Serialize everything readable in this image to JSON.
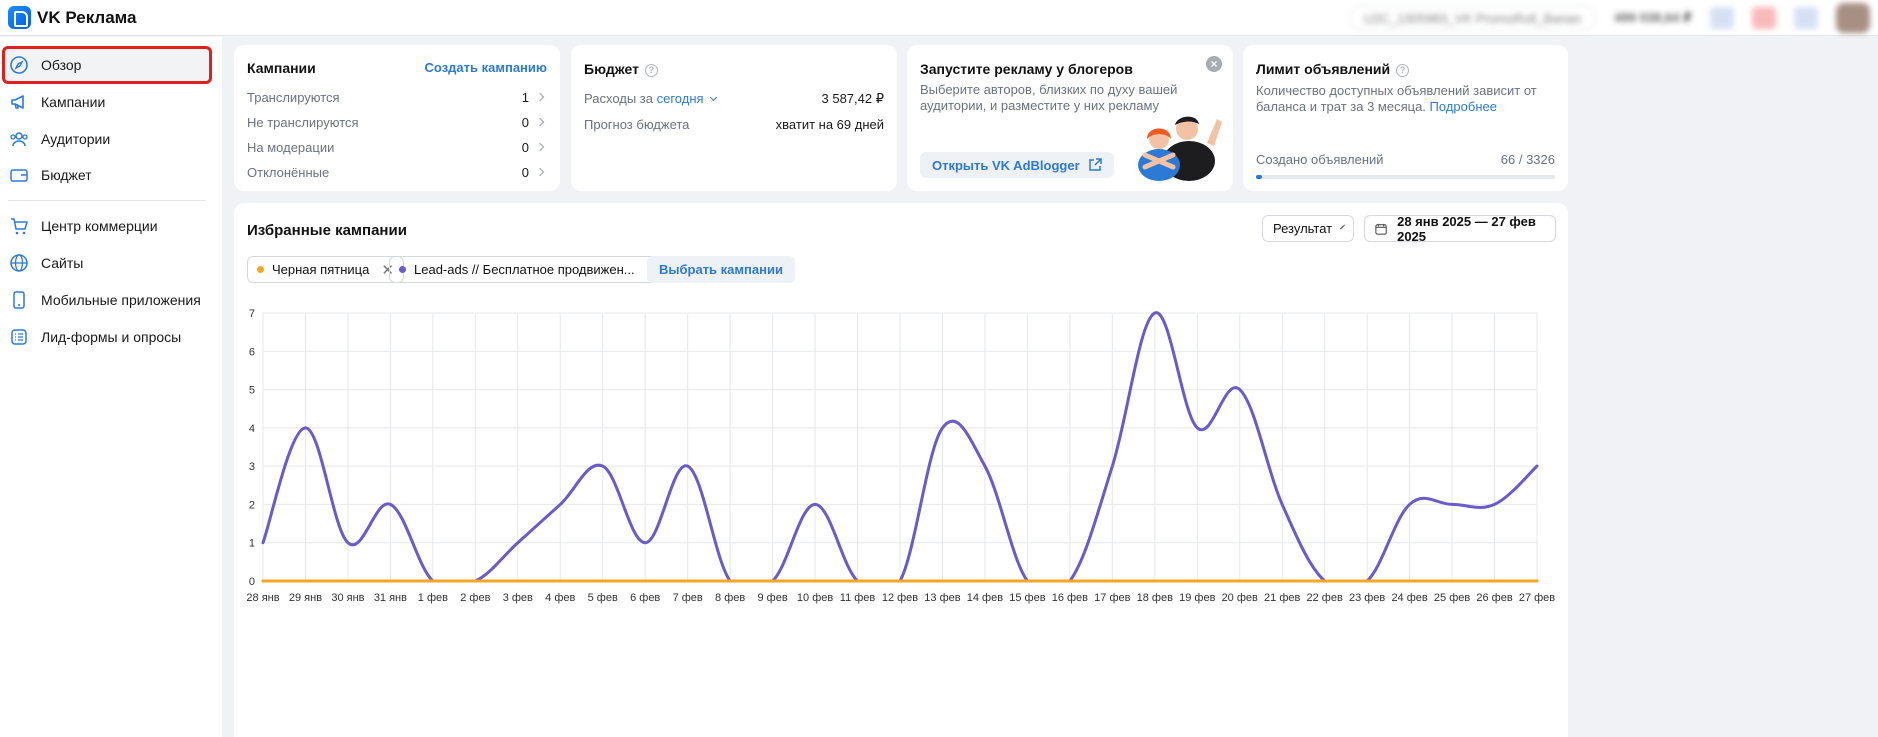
{
  "app": {
    "title": "VK Реклама"
  },
  "topbar": {
    "account": "U2C_1305983_VK PromoRoll_Banan",
    "balance": "499 038,64 ₽"
  },
  "sidebar": {
    "items": [
      {
        "label": "Обзор",
        "icon": "compass-icon",
        "active": true
      },
      {
        "label": "Кампании",
        "icon": "megaphone-icon"
      },
      {
        "label": "Аудитории",
        "icon": "users-icon"
      },
      {
        "label": "Бюджет",
        "icon": "wallet-icon"
      },
      {
        "label": "Центр коммерции",
        "icon": "cart-icon"
      },
      {
        "label": "Сайты",
        "icon": "globe-icon"
      },
      {
        "label": "Мобильные приложения",
        "icon": "phone-icon"
      },
      {
        "label": "Лид-формы и опросы",
        "icon": "form-list-icon"
      }
    ]
  },
  "campaigns_card": {
    "title": "Кампании",
    "create_link": "Создать кампанию",
    "rows": [
      {
        "label": "Транслируются",
        "value": "1"
      },
      {
        "label": "Не транслируются",
        "value": "0"
      },
      {
        "label": "На модерации",
        "value": "0"
      },
      {
        "label": "Отклонённые",
        "value": "0"
      }
    ]
  },
  "budget_card": {
    "title": "Бюджет",
    "spend_label": "Расходы за",
    "spend_period": "сегодня",
    "spend_value": "3 587,42 ₽",
    "forecast_label": "Прогноз бюджета",
    "forecast_value": "хватит на 69 дней"
  },
  "bloggers_card": {
    "title": "Запустите рекламу у блогеров",
    "text": "Выберите авторов, близких по духу вашей аудитории, и разместите у них рекламу",
    "button": "Открыть VK AdBlogger"
  },
  "limit_card": {
    "title": "Лимит объявлений",
    "text": "Количество доступных объявлений зависит от баланса и трат за 3 месяца.",
    "more_link": "Подробнее",
    "created_label": "Создано объявлений",
    "created_value": "66 / 3326",
    "created_fraction": 0.0198
  },
  "favorites": {
    "title": "Избранные кампании",
    "metric_select": "Результат",
    "date_range": "28 янв 2025 — 27 фев 2025",
    "chips": [
      {
        "label": "Черная пятница",
        "color": "#f5a623"
      },
      {
        "label": "Lead-ads // Бесплатное продвижен...",
        "color": "#6a5acd"
      }
    ],
    "select_button": "Выбрать кампании"
  },
  "chart_data": {
    "type": "line",
    "x": [
      "28 янв",
      "29 янв",
      "30 янв",
      "31 янв",
      "1 фев",
      "2 фев",
      "3 фев",
      "4 фев",
      "5 фев",
      "6 фев",
      "7 фев",
      "8 фев",
      "9 фев",
      "10 фев",
      "11 фев",
      "12 фев",
      "13 фев",
      "14 фев",
      "15 фев",
      "16 фев",
      "17 фев",
      "18 фев",
      "19 фев",
      "20 фев",
      "21 фев",
      "22 фев",
      "23 фев",
      "24 фев",
      "25 фев",
      "26 фев",
      "27 фев"
    ],
    "yticks": [
      "0",
      "1",
      "2",
      "3",
      "4",
      "5",
      "6",
      "7"
    ],
    "ylim": [
      0,
      7
    ],
    "grid": true,
    "series": [
      {
        "name": "Черная пятница",
        "color": "#f5a623",
        "values": [
          0,
          0,
          0,
          0,
          0,
          0,
          0,
          0,
          0,
          0,
          0,
          0,
          0,
          0,
          0,
          0,
          0,
          0,
          0,
          0,
          0,
          0,
          0,
          0,
          0,
          0,
          0,
          0,
          0,
          0,
          0
        ]
      },
      {
        "name": "Lead-ads // Бесплатное продвижен...",
        "color": "#6a5acd",
        "values": [
          1,
          4,
          1,
          2,
          0,
          0,
          1,
          2,
          3,
          1,
          3,
          0,
          0,
          2,
          0,
          0,
          4,
          3,
          0,
          0,
          3,
          7,
          4,
          5,
          2,
          0,
          0,
          2,
          2,
          2,
          3
        ]
      }
    ]
  }
}
